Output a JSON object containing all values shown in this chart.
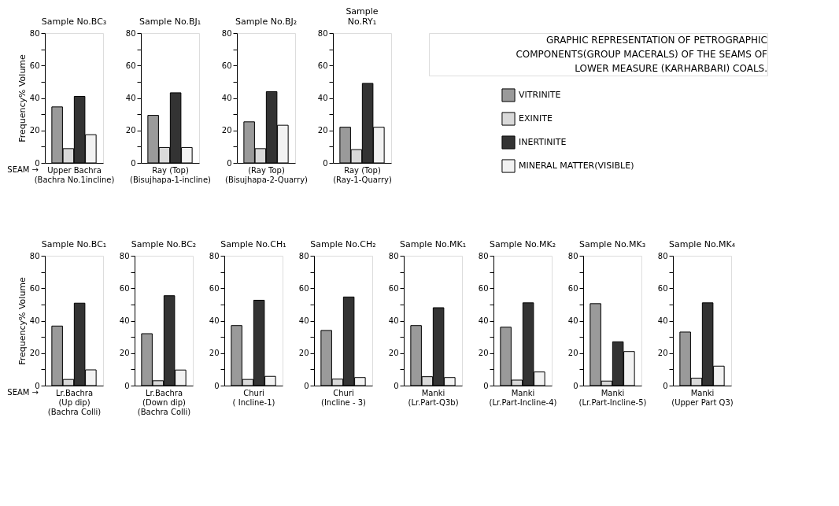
{
  "chart_data": [
    {
      "type": "bar",
      "title": "Sample No.BC₃",
      "xlabel": "Upper Bachra\n(Bachra No.1incline)",
      "ylabel": "Frequency% Volume",
      "annotations": [
        "SEAM →"
      ],
      "categories": [
        null
      ],
      "ylim": [
        0,
        80
      ],
      "yticks": [
        0,
        {
          "value": 10,
          "label": null
        },
        20,
        {
          "value": 30,
          "label": null
        },
        40,
        {
          "value": 50,
          "label": null
        },
        60,
        {
          "value": 70,
          "label": null
        },
        80
      ],
      "series": [
        {
          "color": "#9a9a9a",
          "values": [
            34.5
          ]
        },
        {
          "color": "#d9d9d9",
          "values": [
            8.8
          ]
        },
        {
          "color": "#333333",
          "values": [
            41
          ]
        },
        {
          "color": "#f2f2f2",
          "values": [
            17.4
          ]
        }
      ]
    },
    {
      "type": "bar",
      "title": "Sample No.BJ₁",
      "xlabel": "Ray (Top)\n(Bisujhapa-1-incline)",
      "categories": [
        null
      ],
      "ylim": [
        0,
        80
      ],
      "yticks": [
        0,
        {
          "value": 10,
          "label": null
        },
        20,
        {
          "value": 30,
          "label": null
        },
        40,
        {
          "value": 50,
          "label": null
        },
        60,
        {
          "value": 70,
          "label": null
        },
        80
      ],
      "series": [
        {
          "color": "#9a9a9a",
          "values": [
            29.3
          ]
        },
        {
          "color": "#d9d9d9",
          "values": [
            9.5
          ]
        },
        {
          "color": "#333333",
          "values": [
            43.2
          ]
        },
        {
          "color": "#f2f2f2",
          "values": [
            9.5
          ]
        }
      ]
    },
    {
      "type": "bar",
      "title": "Sample No.BJ₂",
      "xlabel": "(Ray Top)\n(Bisujhapa-2-Quarry)",
      "categories": [
        null
      ],
      "ylim": [
        0,
        80
      ],
      "yticks": [
        0,
        {
          "value": 10,
          "label": null
        },
        20,
        {
          "value": 30,
          "label": null
        },
        40,
        {
          "value": 50,
          "label": null
        },
        60,
        {
          "value": 70,
          "label": null
        },
        80
      ],
      "series": [
        {
          "color": "#9a9a9a",
          "values": [
            25.3
          ]
        },
        {
          "color": "#d9d9d9",
          "values": [
            8.8
          ]
        },
        {
          "color": "#333333",
          "values": [
            43.9
          ]
        },
        {
          "color": "#f2f2f2",
          "values": [
            23.2
          ]
        }
      ]
    },
    {
      "type": "bar",
      "title": "Sample\nNo.RY₁",
      "xlabel": "Ray (Top)\n(Ray-1-Quarry)",
      "legend": "right",
      "categories": [
        null
      ],
      "ylim": [
        0,
        80
      ],
      "yticks": [
        0,
        {
          "value": 10,
          "label": null
        },
        20,
        {
          "value": 30,
          "label": null
        },
        40,
        {
          "value": 50,
          "label": null
        },
        60,
        {
          "value": 70,
          "label": null
        },
        80
      ],
      "series": [
        {
          "name": "VITRINITE",
          "color": "#9a9a9a",
          "values": [
            22
          ]
        },
        {
          "name": "EXINITE",
          "color": "#d9d9d9",
          "values": [
            8.2
          ]
        },
        {
          "name": "INERTINITE",
          "color": "#333333",
          "values": [
            49
          ]
        },
        {
          "name": "MINERAL MATTER(VISIBLE)",
          "color": "#f2f2f2",
          "values": [
            22
          ]
        }
      ]
    },
    {
      "type": "bar",
      "title": "Sample No.BC₁",
      "xlabel": "Lr.Bachra\n(Up dip)\n(Bachra Colli)",
      "ylabel": "Frequency% Volume",
      "annotations": [
        "SEAM →"
      ],
      "categories": [
        null
      ],
      "ylim": [
        0,
        80
      ],
      "yticks": [
        0,
        {
          "value": 10,
          "label": null
        },
        20,
        {
          "value": 30,
          "label": null
        },
        40,
        {
          "value": 50,
          "label": null
        },
        60,
        {
          "value": 70,
          "label": null
        },
        80
      ],
      "series": [
        {
          "color": "#9a9a9a",
          "values": [
            36.7
          ]
        },
        {
          "color": "#d9d9d9",
          "values": [
            3.8
          ]
        },
        {
          "color": "#333333",
          "values": [
            50.8
          ]
        },
        {
          "color": "#f2f2f2",
          "values": [
            9.7
          ]
        }
      ]
    },
    {
      "type": "bar",
      "title": "Sample No.BC₂",
      "xlabel": "Lr.Bachra\n(Down dip)\n(Bachra Colli)",
      "categories": [
        null
      ],
      "ylim": [
        0,
        80
      ],
      "yticks": [
        0,
        {
          "value": 10,
          "label": null
        },
        20,
        {
          "value": 30,
          "label": null
        },
        40,
        {
          "value": 50,
          "label": null
        },
        60,
        {
          "value": 70,
          "label": null
        },
        80
      ],
      "series": [
        {
          "color": "#9a9a9a",
          "values": [
            32
          ]
        },
        {
          "color": "#d9d9d9",
          "values": [
            3
          ]
        },
        {
          "color": "#333333",
          "values": [
            55.4
          ]
        },
        {
          "color": "#f2f2f2",
          "values": [
            9.6
          ]
        }
      ]
    },
    {
      "type": "bar",
      "title": "Sample No.CH₁",
      "xlabel": "Churi\n( Incline-1)",
      "categories": [
        null
      ],
      "ylim": [
        0,
        80
      ],
      "yticks": [
        0,
        {
          "value": 10,
          "label": null
        },
        20,
        {
          "value": 30,
          "label": null
        },
        40,
        {
          "value": 50,
          "label": null
        },
        60,
        {
          "value": 70,
          "label": null
        },
        80
      ],
      "series": [
        {
          "color": "#9a9a9a",
          "values": [
            37
          ]
        },
        {
          "color": "#d9d9d9",
          "values": [
            3.8
          ]
        },
        {
          "color": "#333333",
          "values": [
            52.6
          ]
        },
        {
          "color": "#f2f2f2",
          "values": [
            5.7
          ]
        }
      ]
    },
    {
      "type": "bar",
      "title": "Sample No.CH₂",
      "xlabel": "Churi\n(Incline - 3)",
      "categories": [
        null
      ],
      "ylim": [
        0,
        80
      ],
      "yticks": [
        0,
        {
          "value": 10,
          "label": null
        },
        20,
        {
          "value": 30,
          "label": null
        },
        40,
        {
          "value": 50,
          "label": null
        },
        60,
        {
          "value": 70,
          "label": null
        },
        80
      ],
      "series": [
        {
          "color": "#9a9a9a",
          "values": [
            34
          ]
        },
        {
          "color": "#d9d9d9",
          "values": [
            4
          ]
        },
        {
          "color": "#333333",
          "values": [
            54.6
          ]
        },
        {
          "color": "#f2f2f2",
          "values": [
            5
          ]
        }
      ]
    },
    {
      "type": "bar",
      "title": "Sample No.MK₁",
      "xlabel": "Manki\n(Lr.Part-Q3b)",
      "categories": [
        null
      ],
      "ylim": [
        0,
        80
      ],
      "yticks": [
        0,
        {
          "value": 10,
          "label": null
        },
        20,
        {
          "value": 30,
          "label": null
        },
        40,
        {
          "value": 50,
          "label": null
        },
        60,
        {
          "value": 70,
          "label": null
        },
        80
      ],
      "series": [
        {
          "color": "#9a9a9a",
          "values": [
            37
          ]
        },
        {
          "color": "#d9d9d9",
          "values": [
            5.5
          ]
        },
        {
          "color": "#333333",
          "values": [
            48
          ]
        },
        {
          "color": "#f2f2f2",
          "values": [
            5
          ]
        }
      ]
    },
    {
      "type": "bar",
      "title": "Sample No.MK₂",
      "xlabel": "Manki\n(Lr.Part-Incline-4)",
      "categories": [
        null
      ],
      "ylim": [
        0,
        80
      ],
      "yticks": [
        0,
        {
          "value": 10,
          "label": null
        },
        20,
        {
          "value": 30,
          "label": null
        },
        40,
        {
          "value": 50,
          "label": null
        },
        60,
        {
          "value": 70,
          "label": null
        },
        80
      ],
      "series": [
        {
          "color": "#9a9a9a",
          "values": [
            36
          ]
        },
        {
          "color": "#d9d9d9",
          "values": [
            3.4
          ]
        },
        {
          "color": "#333333",
          "values": [
            51
          ]
        },
        {
          "color": "#f2f2f2",
          "values": [
            8.4
          ]
        }
      ]
    },
    {
      "type": "bar",
      "title": "Sample No.MK₃",
      "xlabel": "Manki\n(Lr.Part-Incline-5)",
      "categories": [
        null
      ],
      "ylim": [
        0,
        80
      ],
      "yticks": [
        0,
        {
          "value": 10,
          "label": null
        },
        20,
        {
          "value": 30,
          "label": null
        },
        40,
        {
          "value": 50,
          "label": null
        },
        60,
        {
          "value": 70,
          "label": null
        },
        80
      ],
      "series": [
        {
          "color": "#9a9a9a",
          "values": [
            50.5
          ]
        },
        {
          "color": "#d9d9d9",
          "values": [
            2.8
          ]
        },
        {
          "color": "#333333",
          "values": [
            27
          ]
        },
        {
          "color": "#f2f2f2",
          "values": [
            21
          ]
        }
      ]
    },
    {
      "type": "bar",
      "title": "Sample No.MK₄",
      "xlabel": "Manki\n(Upper Part Q3)",
      "categories": [
        null
      ],
      "ylim": [
        0,
        80
      ],
      "yticks": [
        0,
        {
          "value": 10,
          "label": null
        },
        20,
        {
          "value": 30,
          "label": null
        },
        40,
        {
          "value": 50,
          "label": null
        },
        60,
        {
          "value": 70,
          "label": null
        },
        80
      ],
      "series": [
        {
          "color": "#9a9a9a",
          "values": [
            33
          ]
        },
        {
          "color": "#d9d9d9",
          "values": [
            4.6
          ]
        },
        {
          "color": "#333333",
          "values": [
            51
          ]
        },
        {
          "color": "#f2f2f2",
          "values": [
            12
          ]
        }
      ]
    },
    {
      "type": "other",
      "title": "GRAPHIC REPRESENTATION OF PETROGRAPHIC\nCOMPONENTS(GROUP MACERALS) OF THE SEAMS OF\nLOWER MEASURE (KARHARBARI) COALS."
    }
  ]
}
